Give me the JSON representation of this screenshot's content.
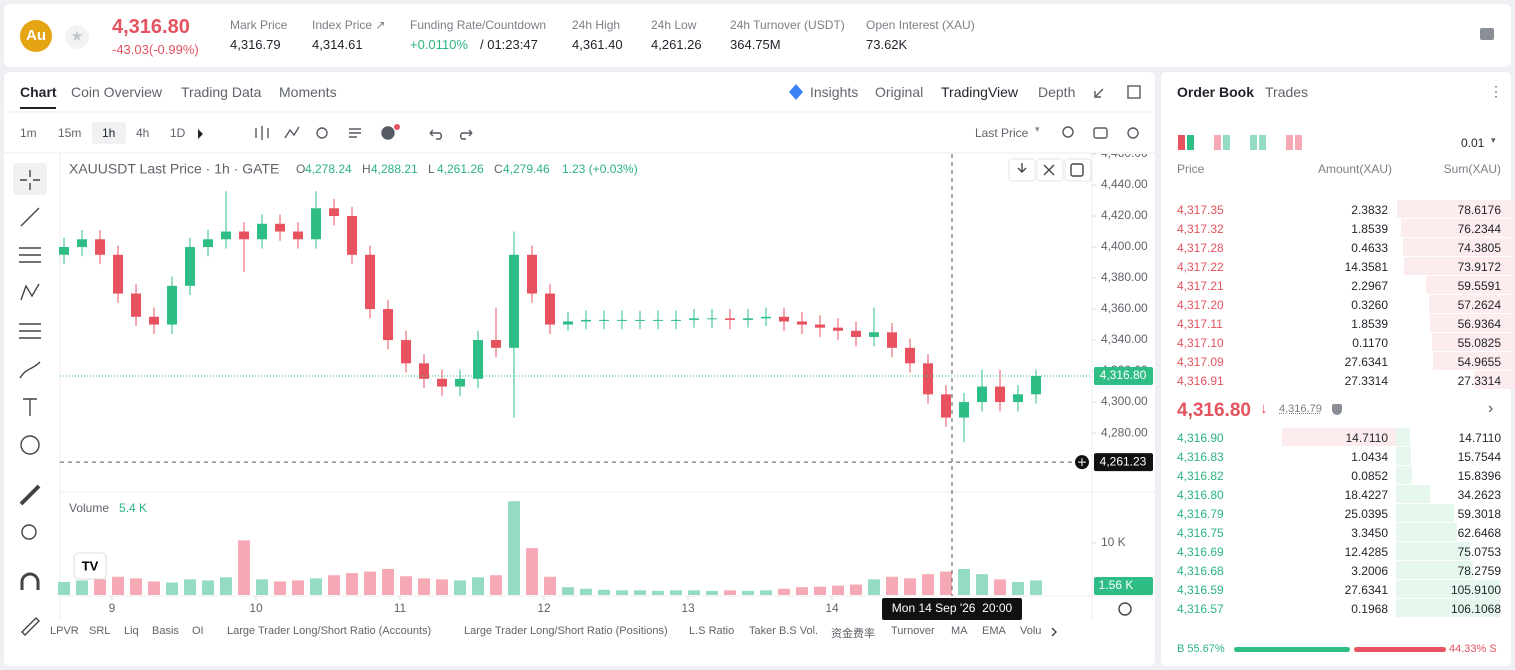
{
  "header": {
    "symbol_icon": "Au",
    "price": "4,316.80",
    "change": "-43.03(-0.99%)",
    "stats": [
      {
        "label": "Mark Price",
        "value": "4,316.79"
      },
      {
        "label": "Index Price ↗",
        "value": "4,314.61"
      },
      {
        "label": "Funding Rate/Countdown",
        "value": "+0.0110%",
        "extra": "/ 01:23:47"
      },
      {
        "label": "24h High",
        "value": "4,361.40"
      },
      {
        "label": "24h Low",
        "value": "4,261.26"
      },
      {
        "label": "24h Turnover (USDT)",
        "value": "364.75M"
      },
      {
        "label": "Open Interest (XAU)",
        "value": "73.62K"
      }
    ]
  },
  "chart_tabs": [
    "Chart",
    "Coin Overview",
    "Trading Data",
    "Moments"
  ],
  "view_tabs": [
    "Insights",
    "Original",
    "TradingView",
    "Depth"
  ],
  "intervals": [
    "1m",
    "15m",
    "1h",
    "4h",
    "1D"
  ],
  "price_type": "Last Price",
  "indicators": [
    "LPVR",
    "SRL",
    "Liq",
    "Basis",
    "OI",
    "Large Trader Long/Short Ratio (Accounts)",
    "Large Trader Long/Short Ratio (Positions)",
    "L.S Ratio",
    "Taker B.S Vol.",
    "资金费率",
    "Turnover",
    "MA",
    "EMA",
    "Volu"
  ],
  "chart_data": {
    "type": "candlestick",
    "title": "XAUUSDT Last Price · 1h · GATE",
    "ohlc": [
      {
        "key": "O",
        "value": "4,278.24"
      },
      {
        "key": "H",
        "value": "4,288.21"
      },
      {
        "key": "L",
        "value": "4,261.26"
      },
      {
        "key": "C",
        "value": "4,279.46"
      }
    ],
    "change": "1.23 (+0.03%)",
    "up_color": "#2ebd85",
    "down_color": "#e8525f",
    "volume_up_color": "#93dcc1",
    "volume_down_color": "#f5a9b4",
    "x": [
      -8,
      -5,
      -2,
      1,
      4,
      7,
      10,
      13,
      16,
      19,
      22,
      25,
      28,
      31,
      34,
      37,
      40,
      43,
      46,
      49,
      52,
      55,
      58,
      61,
      64,
      67,
      70,
      73,
      76,
      79,
      82,
      85,
      88,
      91,
      94,
      97,
      100,
      103,
      106,
      109,
      112,
      115,
      118,
      121,
      124,
      127,
      130,
      133,
      136,
      139,
      142,
      145,
      148,
      151,
      154
    ],
    "open": [
      4395,
      4400,
      4405,
      4395,
      4370,
      4355,
      4350,
      4375,
      4400,
      4405,
      4410,
      4405,
      4415,
      4410,
      4405,
      4425,
      4420,
      4395,
      4360,
      4340,
      4325,
      4315,
      4310,
      4315,
      4340,
      4335,
      4395,
      4370,
      4350,
      4352,
      4353,
      4353,
      4353,
      4353,
      4353,
      4353,
      4354,
      4354,
      4353,
      4354,
      4355,
      4352,
      4350,
      4348,
      4346,
      4342,
      4345,
      4335,
      4325,
      4305,
      4290,
      4300,
      4310,
      4300,
      4305
    ],
    "high": [
      4406,
      4411,
      4411,
      4401,
      4376,
      4361,
      4381,
      4406,
      4411,
      4436,
      4416,
      4421,
      4421,
      4416,
      4436,
      4431,
      4426,
      4401,
      4366,
      4346,
      4331,
      4321,
      4321,
      4346,
      4361,
      4410,
      4401,
      4376,
      4358,
      4359,
      4359,
      4359,
      4359,
      4359,
      4359,
      4360,
      4360,
      4360,
      4360,
      4361,
      4361,
      4358,
      4356,
      4354,
      4352,
      4361,
      4351,
      4341,
      4331,
      4311,
      4306,
      4321,
      4321,
      4311,
      4321
    ],
    "low": [
      4389,
      4394,
      4389,
      4364,
      4349,
      4344,
      4344,
      4369,
      4394,
      4399,
      4384,
      4399,
      4404,
      4399,
      4399,
      4414,
      4389,
      4354,
      4334,
      4319,
      4309,
      4304,
      4304,
      4309,
      4329,
      4290,
      4364,
      4344,
      4346,
      4347,
      4347,
      4347,
      4347,
      4347,
      4347,
      4348,
      4348,
      4347,
      4348,
      4349,
      4346,
      4344,
      4342,
      4340,
      4336,
      4336,
      4329,
      4319,
      4299,
      4284,
      4274,
      4294,
      4294,
      4294,
      4299
    ],
    "close": [
      4400,
      4405,
      4395,
      4370,
      4355,
      4350,
      4375,
      4400,
      4405,
      4410,
      4405,
      4415,
      4410,
      4405,
      4425,
      4420,
      4395,
      4360,
      4340,
      4325,
      4315,
      4310,
      4315,
      4340,
      4335,
      4395,
      4370,
      4350,
      4352,
      4353,
      4353,
      4353,
      4353,
      4353,
      4353,
      4354,
      4354,
      4353,
      4354,
      4355,
      4352,
      4350,
      4348,
      4346,
      4342,
      4345,
      4335,
      4325,
      4305,
      4290,
      4300,
      4310,
      4300,
      4305,
      4316.8
    ],
    "volume_label": "Volume",
    "volume_value": "5.4 K",
    "volume": [
      2500,
      2800,
      3000,
      3500,
      3200,
      2600,
      2400,
      3000,
      2800,
      3400,
      10500,
      3000,
      2600,
      2800,
      3200,
      3800,
      4200,
      4500,
      5000,
      3600,
      3200,
      3000,
      2800,
      3400,
      3800,
      18000,
      9000,
      3500,
      1500,
      1200,
      1000,
      900,
      900,
      800,
      900,
      900,
      800,
      900,
      800,
      900,
      1200,
      1500,
      1600,
      1800,
      2000,
      3000,
      3500,
      3200,
      4000,
      4500,
      5000,
      4000,
      3000,
      2500,
      2800
    ],
    "xlim": [
      -8.67,
      163
    ],
    "xticks": [
      {
        "value": 0,
        "label": "9"
      },
      {
        "value": 24,
        "label": "10"
      },
      {
        "value": 48,
        "label": "11"
      },
      {
        "value": 72,
        "label": "12"
      },
      {
        "value": 96,
        "label": "13"
      },
      {
        "value": 120,
        "label": "14"
      }
    ],
    "ylim": [
      4242,
      4460
    ],
    "yticks": [
      {
        "value": 4280,
        "label": "4,280.00"
      },
      {
        "value": 4300,
        "label": "4,300.00"
      },
      {
        "value": 4320,
        "label": "4,320.00"
      },
      {
        "value": 4340,
        "label": "4,340.00"
      },
      {
        "value": 4360,
        "label": "4,360.00"
      },
      {
        "value": 4380,
        "label": "4,380.00"
      },
      {
        "value": 4400,
        "label": "4,400.00"
      },
      {
        "value": 4420,
        "label": "4,420.00"
      },
      {
        "value": 4440,
        "label": "4,440.00"
      },
      {
        "value": 4460,
        "label": "4,460.00"
      }
    ],
    "volume_ylim": [
      0,
      19200
    ],
    "volume_ticks": [
      {
        "value": 10000,
        "label": "10 K"
      }
    ],
    "last_price": {
      "value": 4316.8,
      "label": "4,316.80"
    },
    "volume_tag": "1.56 K",
    "crosshair": {
      "price": {
        "value": 4261.23,
        "label": "4,261.23"
      },
      "time": {
        "value": 140,
        "label": "Mon 14 Sep '26  20:00"
      }
    }
  },
  "order_book": {
    "tabs": [
      "Order Book",
      "Trades"
    ],
    "precision": "0.01",
    "columns": [
      "Price",
      "Amount(XAU)",
      "Sum(XAU)"
    ],
    "asks": [
      [
        "4,317.35",
        "2.3832",
        "78.6176"
      ],
      [
        "4,317.32",
        "1.8539",
        "76.2344"
      ],
      [
        "4,317.28",
        "0.4633",
        "74.3805"
      ],
      [
        "4,317.22",
        "14.3581",
        "73.9172"
      ],
      [
        "4,317.21",
        "2.2967",
        "59.5591"
      ],
      [
        "4,317.20",
        "0.3260",
        "57.2624"
      ],
      [
        "4,317.11",
        "1.8539",
        "56.9364"
      ],
      [
        "4,317.10",
        "0.1170",
        "55.0825"
      ],
      [
        "4,317.09",
        "27.6341",
        "54.9655"
      ],
      [
        "4,316.91",
        "27.3314",
        "27.3314"
      ]
    ],
    "mid_price": "4,316.80",
    "mark_price": "4,316.79",
    "bids": [
      [
        "4,316.90",
        "14.7110",
        "14.7110"
      ],
      [
        "4,316.83",
        "1.0434",
        "15.7544"
      ],
      [
        "4,316.82",
        "0.0852",
        "15.8396"
      ],
      [
        "4,316.80",
        "18.4227",
        "34.2623"
      ],
      [
        "4,316.79",
        "25.0395",
        "59.3018"
      ],
      [
        "4,316.75",
        "3.3450",
        "62.6468"
      ],
      [
        "4,316.69",
        "12.4285",
        "75.0753"
      ],
      [
        "4,316.68",
        "3.2006",
        "78.2759"
      ],
      [
        "4,316.59",
        "27.6341",
        "105.9100"
      ],
      [
        "4,316.57",
        "0.1968",
        "106.1068"
      ]
    ],
    "buy": {
      "label": "B 55.67%",
      "value": 55.67
    },
    "sell": {
      "label": "44.33% S",
      "value": 44.33
    }
  }
}
